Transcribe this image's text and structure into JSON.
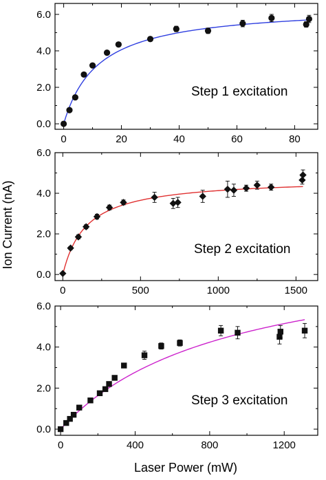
{
  "figure": {
    "ylabel": "Ion Current (nA)",
    "xlabel": "Laser Power (mW)"
  },
  "chart_data": [
    {
      "type": "scatter",
      "annotation": "Step 1 excitation",
      "marker": "circle",
      "fit_color": "#2e3ee0",
      "xlim": [
        -3,
        88
      ],
      "ylim": [
        -0.3,
        6.6
      ],
      "xticks": [
        "0",
        "20",
        "40",
        "60",
        "80"
      ],
      "xtick_values": [
        0,
        20,
        40,
        60,
        80
      ],
      "yticks": [
        "0.0",
        "2.0",
        "4.0",
        "6.0"
      ],
      "ytick_values": [
        0,
        2,
        4,
        6
      ],
      "x": [
        0,
        2,
        4,
        7,
        10,
        15,
        19,
        30,
        39,
        50,
        62,
        72,
        84,
        85
      ],
      "y": [
        0.0,
        0.75,
        1.45,
        2.7,
        3.2,
        3.9,
        4.35,
        4.65,
        5.2,
        5.1,
        5.5,
        5.8,
        5.45,
        5.75
      ],
      "err": [
        0.05,
        0.08,
        0.1,
        0.1,
        0.1,
        0.12,
        0.12,
        0.12,
        0.15,
        0.15,
        0.18,
        0.2,
        0.15,
        0.2
      ],
      "fit": {
        "ymax": 6.5,
        "k": 12
      }
    },
    {
      "type": "scatter",
      "annotation": "Step 2 excitation",
      "marker": "diamond",
      "fit_color": "#e03030",
      "xlim": [
        -50,
        1640
      ],
      "ylim": [
        -0.3,
        6.0
      ],
      "xticks": [
        "0",
        "500",
        "1000",
        "1500"
      ],
      "xtick_values": [
        0,
        500,
        1000,
        1500
      ],
      "yticks": [
        "0.0",
        "2.0",
        "4.0",
        "6.0"
      ],
      "ytick_values": [
        0,
        2,
        4,
        6
      ],
      "x": [
        0,
        50,
        100,
        150,
        220,
        300,
        390,
        590,
        710,
        740,
        900,
        1060,
        1100,
        1180,
        1250,
        1340,
        1540,
        1545
      ],
      "y": [
        0.05,
        1.3,
        1.85,
        2.35,
        2.85,
        3.3,
        3.55,
        3.8,
        3.5,
        3.55,
        3.85,
        4.2,
        4.15,
        4.25,
        4.4,
        4.3,
        4.65,
        4.9
      ],
      "err": [
        0.05,
        0.08,
        0.1,
        0.1,
        0.12,
        0.12,
        0.12,
        0.25,
        0.25,
        0.25,
        0.3,
        0.4,
        0.3,
        0.15,
        0.2,
        0.15,
        0.2,
        0.25
      ],
      "fit": {
        "ymax": 4.75,
        "k": 150
      }
    },
    {
      "type": "scatter",
      "annotation": "Step 3 excitation",
      "marker": "square",
      "fit_color": "#cc22cc",
      "xlim": [
        -30,
        1380
      ],
      "ylim": [
        -0.3,
        6.0
      ],
      "xticks": [
        "0",
        "400",
        "800",
        "1200"
      ],
      "xtick_values": [
        0,
        400,
        800,
        1200
      ],
      "yticks": [
        "0.0",
        "2.0",
        "4.0",
        "6.0"
      ],
      "ytick_values": [
        0,
        2,
        4,
        6
      ],
      "x": [
        0,
        30,
        50,
        70,
        100,
        160,
        210,
        240,
        260,
        290,
        340,
        450,
        540,
        640,
        860,
        950,
        1175,
        1180,
        1310
      ],
      "y": [
        0.0,
        0.3,
        0.5,
        0.7,
        1.05,
        1.4,
        1.75,
        1.95,
        2.2,
        2.5,
        3.1,
        3.6,
        4.05,
        4.2,
        4.8,
        4.7,
        4.5,
        4.75,
        4.8
      ],
      "err": [
        0.05,
        0.05,
        0.05,
        0.05,
        0.05,
        0.05,
        0.08,
        0.08,
        0.08,
        0.08,
        0.08,
        0.2,
        0.15,
        0.15,
        0.25,
        0.3,
        0.35,
        0.3,
        0.35
      ],
      "fit": {
        "ymax": 9.0,
        "k": 900
      }
    }
  ]
}
